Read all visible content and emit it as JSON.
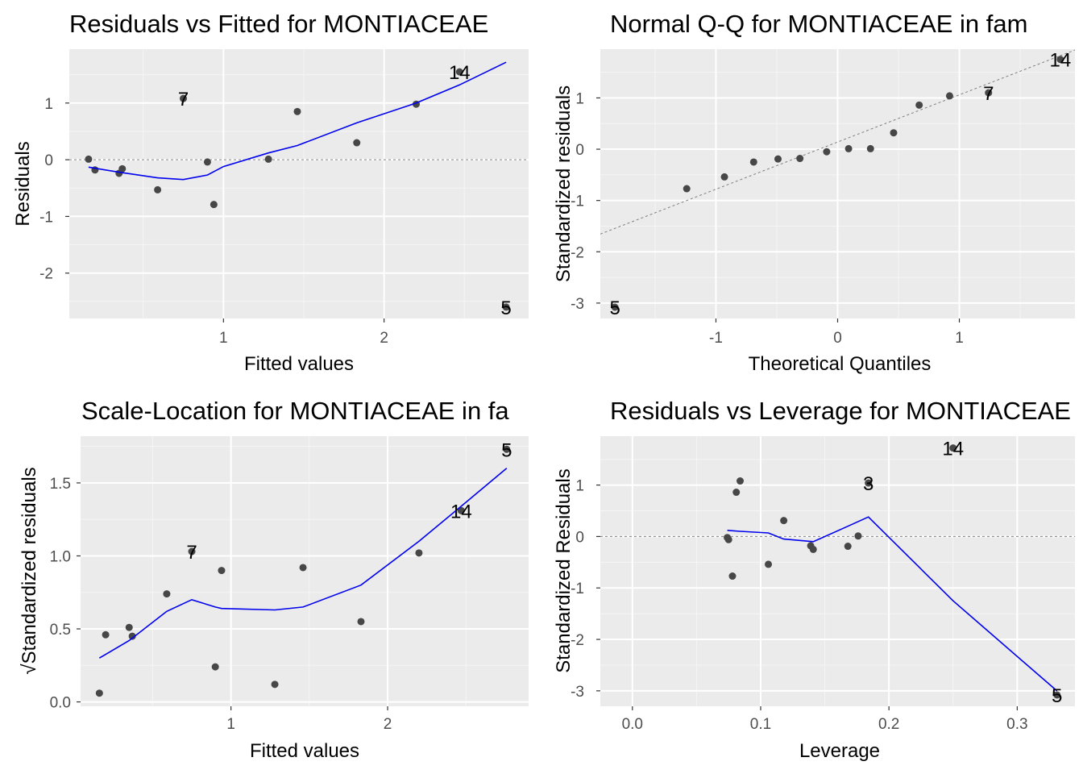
{
  "chart_data": [
    {
      "type": "scatter",
      "title": "Residuals vs Fitted for MONTIACEAE",
      "xlabel": "Fitted values",
      "ylabel": "Residuals",
      "xlim": [
        0.04,
        2.9
      ],
      "ylim": [
        -2.8,
        1.95
      ],
      "xticks": [
        1,
        2
      ],
      "xtick_labels": [
        "1",
        "2"
      ],
      "yticks": [
        -2,
        -1,
        0,
        1
      ],
      "ytick_labels": [
        "-2",
        "-1",
        "0",
        "1"
      ],
      "grid": true,
      "reference_line": {
        "type": "horizontal",
        "y": 0
      },
      "points": [
        {
          "x": 0.16,
          "y": 0.01
        },
        {
          "x": 0.2,
          "y": -0.18
        },
        {
          "x": 0.35,
          "y": -0.24
        },
        {
          "x": 0.37,
          "y": -0.16
        },
        {
          "x": 0.59,
          "y": -0.53
        },
        {
          "x": 0.75,
          "y": 1.08
        },
        {
          "x": 0.9,
          "y": -0.04
        },
        {
          "x": 0.94,
          "y": -0.79
        },
        {
          "x": 1.28,
          "y": 0.01
        },
        {
          "x": 1.46,
          "y": 0.85
        },
        {
          "x": 1.83,
          "y": 0.3
        },
        {
          "x": 2.2,
          "y": 0.98
        },
        {
          "x": 2.47,
          "y": 1.55
        },
        {
          "x": 2.76,
          "y": -2.6
        }
      ],
      "smooth": [
        {
          "x": 0.16,
          "y": -0.13
        },
        {
          "x": 0.35,
          "y": -0.22
        },
        {
          "x": 0.59,
          "y": -0.32
        },
        {
          "x": 0.75,
          "y": -0.35
        },
        {
          "x": 0.9,
          "y": -0.27
        },
        {
          "x": 1.0,
          "y": -0.12
        },
        {
          "x": 1.28,
          "y": 0.12
        },
        {
          "x": 1.46,
          "y": 0.25
        },
        {
          "x": 1.83,
          "y": 0.65
        },
        {
          "x": 2.2,
          "y": 1.0
        },
        {
          "x": 2.47,
          "y": 1.32
        },
        {
          "x": 2.76,
          "y": 1.72
        }
      ],
      "labels": [
        {
          "text": "7",
          "x": 0.75,
          "y": 1.08
        },
        {
          "text": "14",
          "x": 2.47,
          "y": 1.55
        },
        {
          "text": "5",
          "x": 2.76,
          "y": -2.6
        }
      ]
    },
    {
      "type": "scatter",
      "title": "Normal Q-Q for MONTIACEAE in fam",
      "xlabel": "Theoretical Quantiles",
      "ylabel": "Standardized residuals",
      "xlim": [
        -1.95,
        1.95
      ],
      "ylim": [
        -3.3,
        1.95
      ],
      "xticks": [
        -1,
        0,
        1
      ],
      "xtick_labels": [
        "-1",
        "0",
        "1"
      ],
      "yticks": [
        -3,
        -2,
        -1,
        0,
        1
      ],
      "ytick_labels": [
        "-3",
        "-2",
        "-1",
        "0",
        "1"
      ],
      "grid": true,
      "reference_line": {
        "type": "diagonal",
        "intercept": 0.14,
        "slope": 0.92
      },
      "points": [
        {
          "x": -1.83,
          "y": -3.08
        },
        {
          "x": -1.24,
          "y": -0.77
        },
        {
          "x": -0.93,
          "y": -0.54
        },
        {
          "x": -0.69,
          "y": -0.25
        },
        {
          "x": -0.49,
          "y": -0.19
        },
        {
          "x": -0.31,
          "y": -0.18
        },
        {
          "x": -0.09,
          "y": -0.05
        },
        {
          "x": 0.09,
          "y": 0.01
        },
        {
          "x": 0.27,
          "y": 0.01
        },
        {
          "x": 0.46,
          "y": 0.32
        },
        {
          "x": 0.67,
          "y": 0.86
        },
        {
          "x": 0.92,
          "y": 1.04
        },
        {
          "x": 1.24,
          "y": 1.1
        },
        {
          "x": 1.83,
          "y": 1.75
        }
      ],
      "labels": [
        {
          "text": "5",
          "x": -1.83,
          "y": -3.08
        },
        {
          "text": "7",
          "x": 1.24,
          "y": 1.1
        },
        {
          "text": "14",
          "x": 1.83,
          "y": 1.75
        }
      ]
    },
    {
      "type": "scatter",
      "title": "Scale-Location for MONTIACEAE in fa",
      "xlabel": "Fitted values",
      "ylabel": "√Standardized residuals",
      "xlim": [
        0.04,
        2.9
      ],
      "ylim": [
        -0.03,
        1.82
      ],
      "xticks": [
        1,
        2
      ],
      "xtick_labels": [
        "1",
        "2"
      ],
      "yticks": [
        0.0,
        0.5,
        1.0,
        1.5
      ],
      "ytick_labels": [
        "0.0",
        "0.5",
        "1.0",
        "1.5"
      ],
      "grid": true,
      "points": [
        {
          "x": 0.16,
          "y": 0.06
        },
        {
          "x": 0.2,
          "y": 0.46
        },
        {
          "x": 0.35,
          "y": 0.51
        },
        {
          "x": 0.37,
          "y": 0.45
        },
        {
          "x": 0.59,
          "y": 0.74
        },
        {
          "x": 0.75,
          "y": 1.03
        },
        {
          "x": 0.9,
          "y": 0.24
        },
        {
          "x": 0.94,
          "y": 0.9
        },
        {
          "x": 1.28,
          "y": 0.12
        },
        {
          "x": 1.46,
          "y": 0.92
        },
        {
          "x": 1.83,
          "y": 0.55
        },
        {
          "x": 2.2,
          "y": 1.02
        },
        {
          "x": 2.47,
          "y": 1.31
        },
        {
          "x": 2.76,
          "y": 1.73
        }
      ],
      "smooth": [
        {
          "x": 0.16,
          "y": 0.3
        },
        {
          "x": 0.35,
          "y": 0.42
        },
        {
          "x": 0.59,
          "y": 0.62
        },
        {
          "x": 0.75,
          "y": 0.7
        },
        {
          "x": 0.9,
          "y": 0.65
        },
        {
          "x": 0.94,
          "y": 0.64
        },
        {
          "x": 1.28,
          "y": 0.63
        },
        {
          "x": 1.46,
          "y": 0.65
        },
        {
          "x": 1.83,
          "y": 0.8
        },
        {
          "x": 2.2,
          "y": 1.1
        },
        {
          "x": 2.47,
          "y": 1.34
        },
        {
          "x": 2.76,
          "y": 1.6
        }
      ],
      "labels": [
        {
          "text": "7",
          "x": 0.75,
          "y": 1.03
        },
        {
          "text": "14",
          "x": 2.47,
          "y": 1.31
        },
        {
          "text": "5",
          "x": 2.76,
          "y": 1.73
        }
      ]
    },
    {
      "type": "scatter",
      "title": "Residuals vs Leverage for MONTIACEAE",
      "xlabel": "Leverage",
      "ylabel": "Standardized Residuals",
      "xlim": [
        -0.025,
        0.345
      ],
      "ylim": [
        -3.3,
        1.95
      ],
      "xticks": [
        0.0,
        0.1,
        0.2,
        0.3
      ],
      "xtick_labels": [
        "0.0",
        "0.1",
        "0.2",
        "0.3"
      ],
      "yticks": [
        -3,
        -2,
        -1,
        0,
        1
      ],
      "ytick_labels": [
        "-3",
        "-2",
        "-1",
        "0",
        "1"
      ],
      "grid": true,
      "reference_line": {
        "type": "horizontal",
        "y": 0
      },
      "points": [
        {
          "x": 0.074,
          "y": -0.02
        },
        {
          "x": 0.075,
          "y": -0.06
        },
        {
          "x": 0.078,
          "y": -0.77
        },
        {
          "x": 0.081,
          "y": 0.86
        },
        {
          "x": 0.084,
          "y": 1.08
        },
        {
          "x": 0.106,
          "y": -0.54
        },
        {
          "x": 0.118,
          "y": 0.31
        },
        {
          "x": 0.139,
          "y": -0.18
        },
        {
          "x": 0.141,
          "y": -0.25
        },
        {
          "x": 0.168,
          "y": -0.19
        },
        {
          "x": 0.176,
          "y": 0.01
        },
        {
          "x": 0.184,
          "y": 1.04
        },
        {
          "x": 0.25,
          "y": 1.72
        },
        {
          "x": 0.331,
          "y": -3.08
        }
      ],
      "smooth": [
        {
          "x": 0.074,
          "y": 0.12
        },
        {
          "x": 0.084,
          "y": 0.1
        },
        {
          "x": 0.106,
          "y": 0.07
        },
        {
          "x": 0.118,
          "y": -0.05
        },
        {
          "x": 0.141,
          "y": -0.1
        },
        {
          "x": 0.168,
          "y": 0.2
        },
        {
          "x": 0.184,
          "y": 0.38
        },
        {
          "x": 0.25,
          "y": -1.25
        },
        {
          "x": 0.331,
          "y": -3.0
        }
      ],
      "labels": [
        {
          "text": "3",
          "x": 0.184,
          "y": 1.04
        },
        {
          "text": "14",
          "x": 0.25,
          "y": 1.72
        },
        {
          "text": "5",
          "x": 0.331,
          "y": -3.08
        }
      ]
    }
  ]
}
